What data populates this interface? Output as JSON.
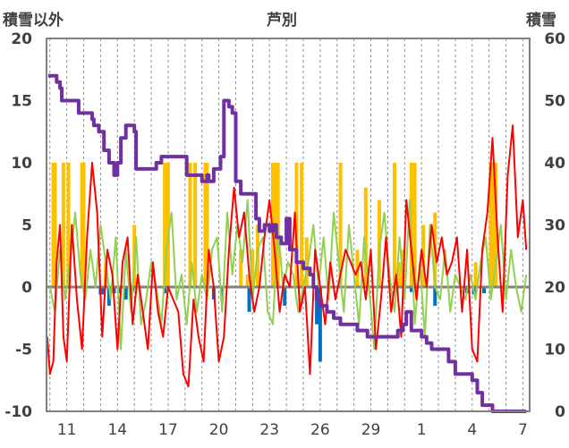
{
  "chart_data": {
    "type": "line",
    "title": "芦別",
    "ylabel_left": "積雪以外",
    "ylabel_right": "積雪",
    "ylim_left": [
      -10,
      20
    ],
    "ylim_right": [
      0,
      60
    ],
    "yticks_left": [
      "20",
      "15",
      "10",
      "5",
      "0",
      "-5",
      "-10"
    ],
    "yticks_right": [
      "60",
      "50",
      "40",
      "30",
      "20",
      "10",
      "0"
    ],
    "xticks": [
      "11",
      "14",
      "17",
      "20",
      "23",
      "26",
      "29",
      "1",
      "4",
      "7"
    ],
    "grid": "vertical dashed daily lines",
    "colors": {
      "temperature": "#ff0000",
      "wind": "#92d050",
      "sunshine": "#ffc000",
      "precipitation": "#0070c0",
      "snow_depth": "#7030a0",
      "zero_line": "#808080"
    },
    "series": [
      {
        "type": "line",
        "axis": "right",
        "color": "#7030a0",
        "x": [
          9.9,
          10.3,
          10.4,
          10.6,
          10.7,
          11.4,
          11.7,
          12.0,
          12.4,
          12.5,
          12.6,
          12.9,
          13.2,
          13.5,
          13.8,
          14.0,
          14.2,
          14.5,
          14.8,
          15.0,
          15.1,
          15.4,
          15.7,
          16.0,
          16.3,
          16.6,
          16.9,
          17.2,
          17.5,
          18.1,
          18.6,
          18.9,
          19.0,
          19.3,
          19.4,
          19.7,
          20.0,
          20.1,
          20.3,
          20.6,
          20.8,
          21.0,
          21.3,
          21.6,
          22.0,
          22.2,
          22.4,
          22.7,
          23.0,
          23.2,
          23.4,
          23.7,
          24.0,
          24.2,
          24.6,
          25.0,
          25.4,
          25.6,
          25.8,
          26.0,
          26.4,
          26.8,
          27.2,
          27.6,
          28.2,
          28.8,
          29.2,
          29.6,
          30.0,
          30.4,
          30.6,
          30.9,
          31.1,
          31.4,
          31.7,
          32.0,
          32.3,
          32.6,
          32.9,
          33.2,
          33.6,
          34.0,
          34.4,
          34.8,
          35.0,
          35.3,
          35.6,
          35.9,
          36.2,
          36.6,
          37.0,
          37.4,
          37.8,
          38.2
        ],
        "values": [
          54,
          54,
          53,
          52,
          50,
          50,
          48,
          48,
          48,
          47,
          46,
          45,
          42,
          40,
          38,
          40,
          44,
          46,
          46,
          45,
          39,
          39,
          39,
          39,
          40,
          41,
          41,
          41,
          41,
          38,
          38,
          38,
          37,
          38,
          37,
          39,
          39,
          41,
          50,
          49,
          48,
          37,
          35,
          35,
          35,
          31,
          29,
          30,
          29,
          30,
          28,
          27,
          31,
          26,
          24,
          23,
          22,
          20,
          18,
          17,
          16,
          15,
          14,
          14,
          13,
          12,
          12,
          12,
          12,
          12,
          13,
          14,
          16,
          13,
          13,
          12,
          11,
          10,
          10,
          10,
          8,
          6,
          6,
          6,
          5,
          3,
          1,
          1,
          0,
          0,
          0,
          0,
          0,
          0
        ]
      },
      {
        "type": "line",
        "axis": "left",
        "color": "#ff0000",
        "x": [
          9.85,
          10.0,
          10.2,
          10.4,
          10.6,
          10.8,
          11.0,
          11.3,
          11.6,
          11.9,
          12.2,
          12.5,
          12.8,
          13.1,
          13.4,
          13.7,
          14.0,
          14.3,
          14.6,
          14.9,
          15.2,
          15.5,
          15.8,
          16.1,
          16.4,
          16.7,
          17.0,
          17.3,
          17.6,
          17.9,
          18.2,
          18.5,
          18.8,
          19.1,
          19.4,
          19.7,
          20.0,
          20.3,
          20.6,
          20.9,
          21.2,
          21.5,
          21.8,
          22.1,
          22.4,
          22.7,
          23.0,
          23.3,
          23.6,
          23.9,
          24.2,
          24.5,
          24.8,
          25.1,
          25.4,
          25.7,
          26.0,
          26.3,
          26.6,
          26.9,
          27.2,
          27.5,
          27.8,
          28.1,
          28.4,
          28.7,
          29.0,
          29.3,
          29.6,
          29.9,
          30.2,
          30.5,
          30.8,
          31.1,
          31.4,
          31.7,
          32.0,
          32.3,
          32.6,
          32.9,
          33.2,
          33.5,
          33.8,
          34.1,
          34.4,
          34.7,
          35.0,
          35.3,
          35.6,
          35.9,
          36.2,
          36.5,
          36.8,
          37.1,
          37.4,
          37.7,
          38.0,
          38.2
        ],
        "values": [
          -4,
          -7,
          -6,
          2,
          5,
          -4,
          -6,
          5,
          -1,
          -5,
          4,
          10,
          6,
          -4,
          3,
          1,
          -5,
          2,
          4,
          -3,
          1,
          -2,
          -5,
          2,
          -2,
          -4,
          0,
          -1,
          -2,
          -7,
          -8,
          -1,
          -4,
          -6,
          3,
          0,
          -6,
          -4,
          3,
          8,
          4,
          6,
          1,
          -2,
          0,
          4,
          7,
          3,
          -2,
          1,
          0,
          6,
          -2,
          0,
          -7,
          3,
          0,
          -3,
          2,
          -1,
          1,
          3,
          2,
          1,
          2,
          -1,
          3,
          -5,
          -1,
          4,
          -2,
          1,
          -4,
          7,
          3,
          -1,
          3,
          0,
          5,
          2,
          4,
          1,
          2,
          4,
          -2,
          3,
          -5,
          -6,
          3,
          6,
          12,
          4,
          -2,
          9,
          13,
          4,
          7,
          3
        ]
      },
      {
        "type": "line",
        "axis": "left",
        "color": "#92d050",
        "x": [
          10.0,
          10.3,
          10.6,
          10.9,
          11.2,
          11.5,
          11.8,
          12.1,
          12.4,
          12.7,
          13.0,
          13.3,
          13.6,
          13.9,
          14.2,
          14.5,
          14.8,
          15.1,
          15.4,
          15.7,
          16.0,
          16.3,
          16.6,
          16.9,
          17.2,
          17.5,
          17.8,
          18.1,
          18.4,
          18.7,
          19.0,
          19.3,
          19.6,
          19.9,
          20.2,
          20.5,
          20.8,
          21.1,
          21.4,
          21.7,
          22.0,
          22.3,
          22.6,
          22.9,
          23.2,
          23.5,
          23.8,
          24.1,
          24.4,
          24.7,
          25.0,
          25.3,
          25.6,
          25.9,
          26.2,
          26.5,
          26.8,
          27.1,
          27.4,
          27.7,
          28.0,
          28.3,
          28.6,
          28.9,
          29.2,
          29.5,
          29.8,
          30.1,
          30.4,
          30.7,
          31.0,
          31.3,
          31.6,
          31.9,
          32.2,
          32.5,
          32.8,
          33.1,
          33.4,
          33.7,
          34.0,
          34.3,
          34.6,
          34.9,
          35.2,
          35.5,
          35.8,
          36.1,
          36.4,
          36.7,
          37.0,
          37.3,
          37.6,
          37.9,
          38.2
        ],
        "values": [
          0,
          -2,
          3,
          -1,
          2,
          6,
          1,
          -1,
          3,
          0,
          5,
          2,
          -1,
          4,
          -5,
          3,
          -2,
          4,
          -3,
          -1,
          2,
          0,
          -3,
          3,
          6,
          -1,
          1,
          -3,
          2,
          -2,
          1,
          -1,
          3,
          4,
          -2,
          6,
          1,
          5,
          2,
          7,
          -1,
          3,
          4,
          -2,
          -3,
          5,
          0,
          2,
          1,
          -2,
          0,
          2,
          5,
          0,
          4,
          -1,
          6,
          2,
          -2,
          5,
          1,
          -3,
          4,
          0,
          -5,
          3,
          6,
          1,
          -2,
          4,
          -1,
          7,
          -3,
          2,
          -4,
          5,
          0,
          -1,
          3,
          -2,
          1,
          0,
          -1,
          1,
          -1,
          2,
          4,
          -1,
          2,
          5,
          -1,
          3,
          0,
          -2,
          1
        ]
      },
      {
        "type": "bar",
        "axis": "left",
        "color": "#ffc000",
        "x": [
          10.2,
          10.3,
          10.8,
          11.1,
          11.9,
          12.0,
          13.3,
          15.0,
          16.8,
          17.0,
          18.3,
          18.6,
          19.2,
          19.3,
          21.3,
          21.7,
          22.0,
          22.3,
          23.2,
          23.4,
          23.5,
          24.6,
          24.9,
          25.2,
          27.2,
          28.2,
          28.7,
          29.5,
          30.4,
          30.7,
          30.9,
          31.4,
          31.6,
          32.1,
          32.8,
          35.2,
          36.1,
          36.2,
          36.4
        ],
        "values": [
          10,
          10,
          10,
          10,
          10,
          10,
          2,
          5,
          10,
          10,
          10,
          10,
          10,
          10,
          3,
          1,
          3,
          5,
          10,
          10,
          10,
          10,
          10,
          4,
          10,
          3,
          8,
          7,
          10,
          2,
          3,
          10,
          10,
          5,
          6,
          2,
          10,
          10,
          10
        ]
      },
      {
        "type": "bar",
        "axis": "left",
        "color": "#0070c0",
        "x": [
          13.0,
          13.2,
          13.5,
          13.8,
          14.1,
          14.5,
          14.9,
          16.8,
          19.7,
          20.2,
          21.8,
          23.9,
          25.8,
          26.0,
          31.4,
          32.8,
          34.7,
          35.1,
          35.7
        ],
        "values": [
          -0.6,
          -0.6,
          -1.5,
          -0.5,
          -0.5,
          -1,
          -0.3,
          -0.5,
          -1,
          -1,
          -2,
          -1.5,
          -3,
          -6,
          -0.4,
          -1.5,
          -0.5,
          -0.6,
          -0.5
        ]
      }
    ]
  }
}
